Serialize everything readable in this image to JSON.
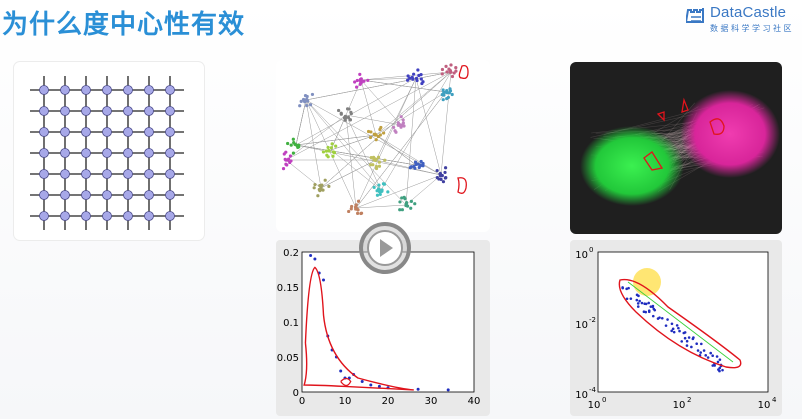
{
  "header": {
    "title": "为什么度中心性有效"
  },
  "logo": {
    "name": "DataCastle",
    "subtitle": "数据科学学习社区"
  },
  "left_plot": {
    "y_ticks": [
      "0.2",
      "0.15",
      "0.1",
      "0.05",
      "0"
    ],
    "x_ticks": [
      "0",
      "10",
      "20",
      "30",
      "40"
    ],
    "points": [
      [
        2,
        0.195
      ],
      [
        3,
        0.19
      ],
      [
        4,
        0.17
      ],
      [
        5,
        0.16
      ],
      [
        6,
        0.08
      ],
      [
        7,
        0.06
      ],
      [
        8,
        0.05
      ],
      [
        9,
        0.03
      ],
      [
        10,
        0.02
      ],
      [
        11,
        0.02
      ],
      [
        12,
        0.025
      ],
      [
        14,
        0.015
      ],
      [
        16,
        0.01
      ],
      [
        18,
        0.008
      ],
      [
        20,
        0.006
      ],
      [
        27,
        0.004
      ],
      [
        34,
        0.003
      ]
    ],
    "x_range": [
      0,
      40
    ],
    "y_range": [
      0,
      0.2
    ]
  },
  "right_plot": {
    "y_ticks": [
      "10",
      "10",
      "10"
    ],
    "y_exps": [
      "0",
      "-2",
      "-4"
    ],
    "x_ticks": [
      "10",
      "10",
      "10"
    ],
    "x_exps": [
      "0",
      "2",
      "4"
    ]
  },
  "colors": {
    "title": "#2a8fd6",
    "node": "#a7a8e8",
    "highlight_curve": "#e0141c",
    "scatter": "#1f2dbf",
    "green_blob": "#22d83a",
    "pink_blob": "#e62ba0"
  },
  "icons": [
    "castle-logo-icon",
    "play-icon"
  ]
}
